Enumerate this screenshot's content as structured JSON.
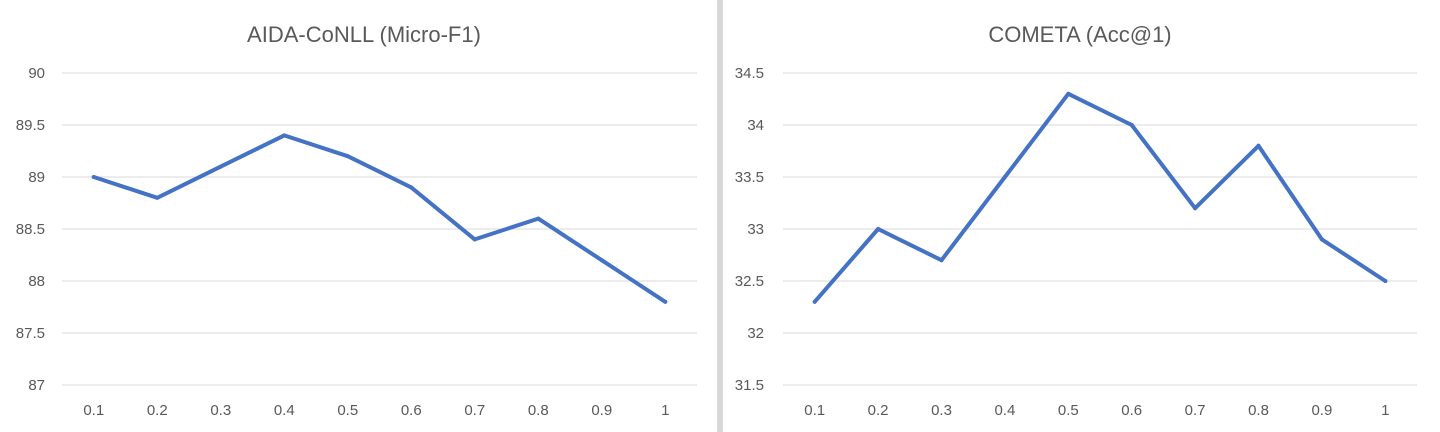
{
  "chart_data": [
    {
      "type": "line",
      "title": "AIDA-CoNLL (Micro-F1)",
      "xlabel": "",
      "ylabel": "",
      "categories": [
        "0.1",
        "0.2",
        "0.3",
        "0.4",
        "0.5",
        "0.6",
        "0.7",
        "0.8",
        "0.9",
        "1"
      ],
      "ylim": [
        87,
        90
      ],
      "yticks": [
        "87",
        "87.5",
        "88",
        "88.5",
        "89",
        "89.5",
        "90"
      ],
      "grid": true,
      "legend": "none",
      "series": [
        {
          "color": "#4472c4",
          "values": [
            89.0,
            88.8,
            89.1,
            89.4,
            89.2,
            88.9,
            88.4,
            88.6,
            88.2,
            87.8
          ]
        }
      ]
    },
    {
      "type": "line",
      "title": "COMETA (Acc@1)",
      "xlabel": "",
      "ylabel": "",
      "categories": [
        "0.1",
        "0.2",
        "0.3",
        "0.4",
        "0.5",
        "0.6",
        "0.7",
        "0.8",
        "0.9",
        "1"
      ],
      "ylim": [
        31.5,
        34.5
      ],
      "yticks": [
        "31.5",
        "32",
        "32.5",
        "33",
        "33.5",
        "34",
        "34.5"
      ],
      "grid": true,
      "legend": "none",
      "series": [
        {
          "color": "#4472c4",
          "values": [
            32.3,
            33.0,
            32.7,
            33.5,
            34.3,
            34.0,
            33.2,
            33.8,
            32.9,
            32.5
          ]
        }
      ]
    }
  ]
}
